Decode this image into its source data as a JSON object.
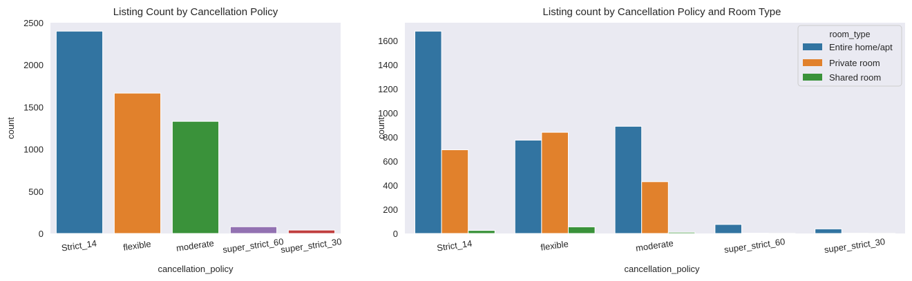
{
  "chart_data": [
    {
      "type": "bar",
      "title": "Listing Count by Cancellation Policy",
      "xlabel": "cancellation_policy",
      "ylabel": "count",
      "ylim": [
        0,
        2500
      ],
      "yticks": [
        0,
        500,
        1000,
        1500,
        2000,
        2500
      ],
      "categories": [
        "Strict_14",
        "flexible",
        "moderate",
        "super_strict_60",
        "super_strict_30"
      ],
      "values": [
        2400,
        1665,
        1330,
        80,
        40
      ],
      "colors": [
        "#3274a1",
        "#e1812c",
        "#3a923a",
        "#9372b2",
        "#c03d3e"
      ],
      "grid": false
    },
    {
      "type": "bar",
      "title": "Listing count by Cancellation Policy and Room Type",
      "xlabel": "cancellation_policy",
      "ylabel": "count",
      "ylim": [
        0,
        1750
      ],
      "yticks": [
        0,
        200,
        400,
        600,
        800,
        1000,
        1200,
        1400,
        1600
      ],
      "categories": [
        "Strict_14",
        "flexible",
        "moderate",
        "super_strict_60",
        "super_strict_30"
      ],
      "legend_title": "room_type",
      "legend_position": "top-right",
      "series": [
        {
          "name": "Entire home/apt",
          "color": "#3274a1",
          "values": [
            1680,
            775,
            890,
            75,
            38
          ]
        },
        {
          "name": "Private room",
          "color": "#e1812c",
          "values": [
            695,
            840,
            430,
            3,
            2
          ]
        },
        {
          "name": "Shared room",
          "color": "#3a923a",
          "values": [
            25,
            55,
            10,
            1,
            1
          ]
        }
      ],
      "grid": false
    }
  ]
}
